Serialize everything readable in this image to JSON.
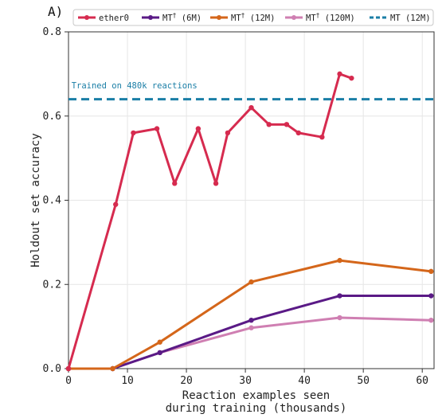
{
  "panel_label": "A)",
  "chart_data": {
    "type": "line",
    "title": "",
    "xlabel_lines": [
      "Reaction examples seen",
      "during training (thousands)"
    ],
    "ylabel": "Holdout set accuracy",
    "xlim": [
      0,
      62
    ],
    "ylim": [
      0,
      0.8
    ],
    "xticks": [
      0,
      10,
      20,
      30,
      40,
      50,
      60
    ],
    "yticks": [
      0.0,
      0.2,
      0.4,
      0.6,
      0.8
    ],
    "ytick_labels": [
      "0.0",
      "0.2",
      "0.4",
      "0.6",
      "0.8"
    ],
    "grid": true,
    "legend_position": "top",
    "series": [
      {
        "name": "ether0",
        "sup": "",
        "color": "#d62b4f",
        "style": "solid",
        "marker": true,
        "x": [
          0,
          8,
          11,
          15,
          18,
          22,
          25,
          27,
          31,
          34,
          37,
          39,
          43,
          46,
          48
        ],
        "y": [
          0.0,
          0.39,
          0.56,
          0.57,
          0.44,
          0.57,
          0.44,
          0.56,
          0.62,
          0.58,
          0.58,
          0.56,
          0.55,
          0.7,
          0.69
        ]
      },
      {
        "name": "MT",
        "sup": "†",
        "suffix": " (6M)",
        "color": "#5a1a86",
        "style": "solid",
        "marker": true,
        "x": [
          0,
          7.5,
          15.5,
          31,
          46,
          61.5
        ],
        "y": [
          0.0,
          0.0,
          0.038,
          0.115,
          0.173,
          0.173
        ]
      },
      {
        "name": "MT",
        "sup": "†",
        "suffix": " (12M)",
        "color": "#d4661a",
        "style": "solid",
        "marker": true,
        "x": [
          0,
          7.5,
          15.5,
          31,
          46,
          61.5
        ],
        "y": [
          0.0,
          0.0,
          0.063,
          0.206,
          0.257,
          0.231
        ]
      },
      {
        "name": "MT",
        "sup": "†",
        "suffix": " (120M)",
        "color": "#cf7fb2",
        "style": "solid",
        "marker": true,
        "x": [
          0,
          7.5,
          15.5,
          31,
          46,
          61.5
        ],
        "y": [
          0.0,
          0.0,
          0.038,
          0.097,
          0.121,
          0.115
        ]
      },
      {
        "name": "MT (12M)",
        "sup": "",
        "color": "#1a7ea6",
        "style": "dashed",
        "marker": false,
        "hline": 0.64
      }
    ],
    "annotations": [
      {
        "text": "Trained on 480k reactions",
        "x": 0.5,
        "y": 0.66,
        "color": "#1a7ea6"
      }
    ]
  }
}
